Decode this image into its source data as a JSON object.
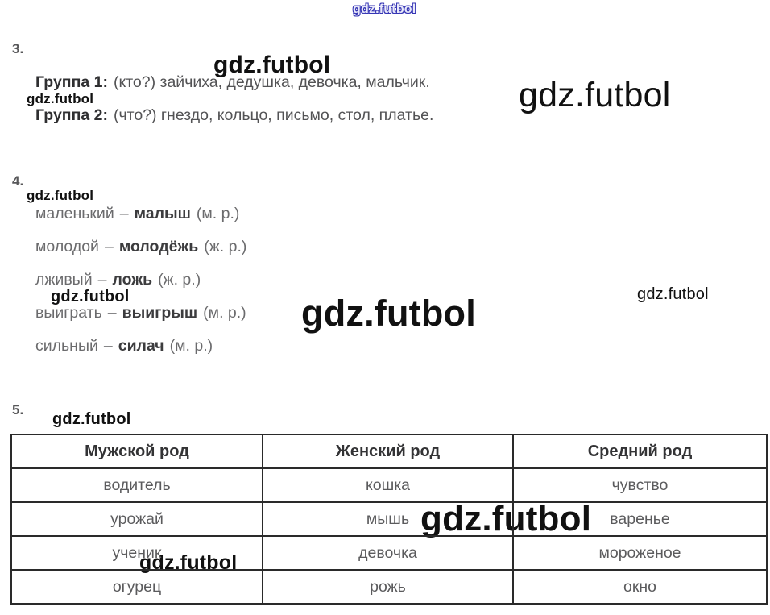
{
  "watermark": {
    "text": "gdz.futbol"
  },
  "colors": {
    "watermark_blue": "#3434b4",
    "text_gray": "#5b5b5d",
    "text_dark": "#2f2f31",
    "table_border": "#2a2a2a"
  },
  "section3": {
    "number": "3.",
    "lines": [
      {
        "label": "Группа 1:",
        "rest": "(кто?) зайчиха, дедушка, девочка, мальчик."
      },
      {
        "label": "Группа 2:",
        "rest": "(что?) гнездо, кольцо, письмо, стол, платье."
      }
    ]
  },
  "section4": {
    "number": "4.",
    "pairs": [
      {
        "word": "маленький",
        "dash": "–",
        "answer": "малыш",
        "note": "(м. р.)"
      },
      {
        "word": "молодой",
        "dash": "–",
        "answer": "молодёжь",
        "note": "(ж. р.)"
      },
      {
        "word": "лживый",
        "dash": "–",
        "answer": "ложь",
        "note": "(ж. р.)"
      },
      {
        "word": "выиграть",
        "dash": "–",
        "answer": "выигрыш",
        "note": "(м. р.)"
      },
      {
        "word": "сильный",
        "dash": "–",
        "answer": "силач",
        "note": "(м. р.)"
      }
    ]
  },
  "section5": {
    "number": "5.",
    "table": {
      "headers": [
        "Мужской род",
        "Женский род",
        "Средний род"
      ],
      "rows": [
        [
          "водитель",
          "кошка",
          "чувство"
        ],
        [
          "урожай",
          "мышь",
          "варенье"
        ],
        [
          "ученик",
          "девочка",
          "мороженое"
        ],
        [
          "огурец",
          "рожь",
          "окно"
        ]
      ]
    }
  }
}
